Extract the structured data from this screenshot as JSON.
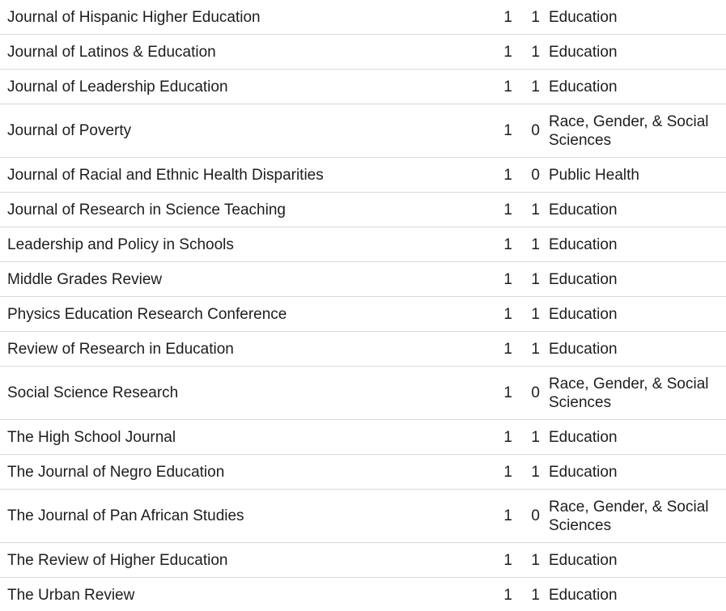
{
  "rows": [
    {
      "name": "Journal of Hispanic Higher Education",
      "a": "1",
      "b": "1",
      "category": "Education"
    },
    {
      "name": "Journal of Latinos & Education",
      "a": "1",
      "b": "1",
      "category": "Education"
    },
    {
      "name": "Journal of Leadership Education",
      "a": "1",
      "b": "1",
      "category": "Education"
    },
    {
      "name": "Journal of Poverty",
      "a": "1",
      "b": "0",
      "category": "Race, Gender, & Social Sciences"
    },
    {
      "name": "Journal of Racial and Ethnic Health Disparities",
      "a": "1",
      "b": "0",
      "category": "Public Health"
    },
    {
      "name": "Journal of Research in Science Teaching",
      "a": "1",
      "b": "1",
      "category": "Education"
    },
    {
      "name": "Leadership and Policy in Schools",
      "a": "1",
      "b": "1",
      "category": "Education"
    },
    {
      "name": "Middle Grades Review",
      "a": "1",
      "b": "1",
      "category": "Education"
    },
    {
      "name": "Physics Education Research Conference",
      "a": "1",
      "b": "1",
      "category": "Education"
    },
    {
      "name": "Review of Research in Education",
      "a": "1",
      "b": "1",
      "category": "Education"
    },
    {
      "name": "Social Science Research",
      "a": "1",
      "b": "0",
      "category": "Race, Gender, & Social Sciences"
    },
    {
      "name": "The High School Journal",
      "a": "1",
      "b": "1",
      "category": "Education"
    },
    {
      "name": "The Journal of Negro Education",
      "a": "1",
      "b": "1",
      "category": "Education"
    },
    {
      "name": "The Journal of Pan African Studies",
      "a": "1",
      "b": "0",
      "category": "Race, Gender, & Social Sciences"
    },
    {
      "name": "The Review of Higher Education",
      "a": "1",
      "b": "1",
      "category": "Education"
    },
    {
      "name": "The Urban Review",
      "a": "1",
      "b": "1",
      "category": "Education"
    }
  ]
}
